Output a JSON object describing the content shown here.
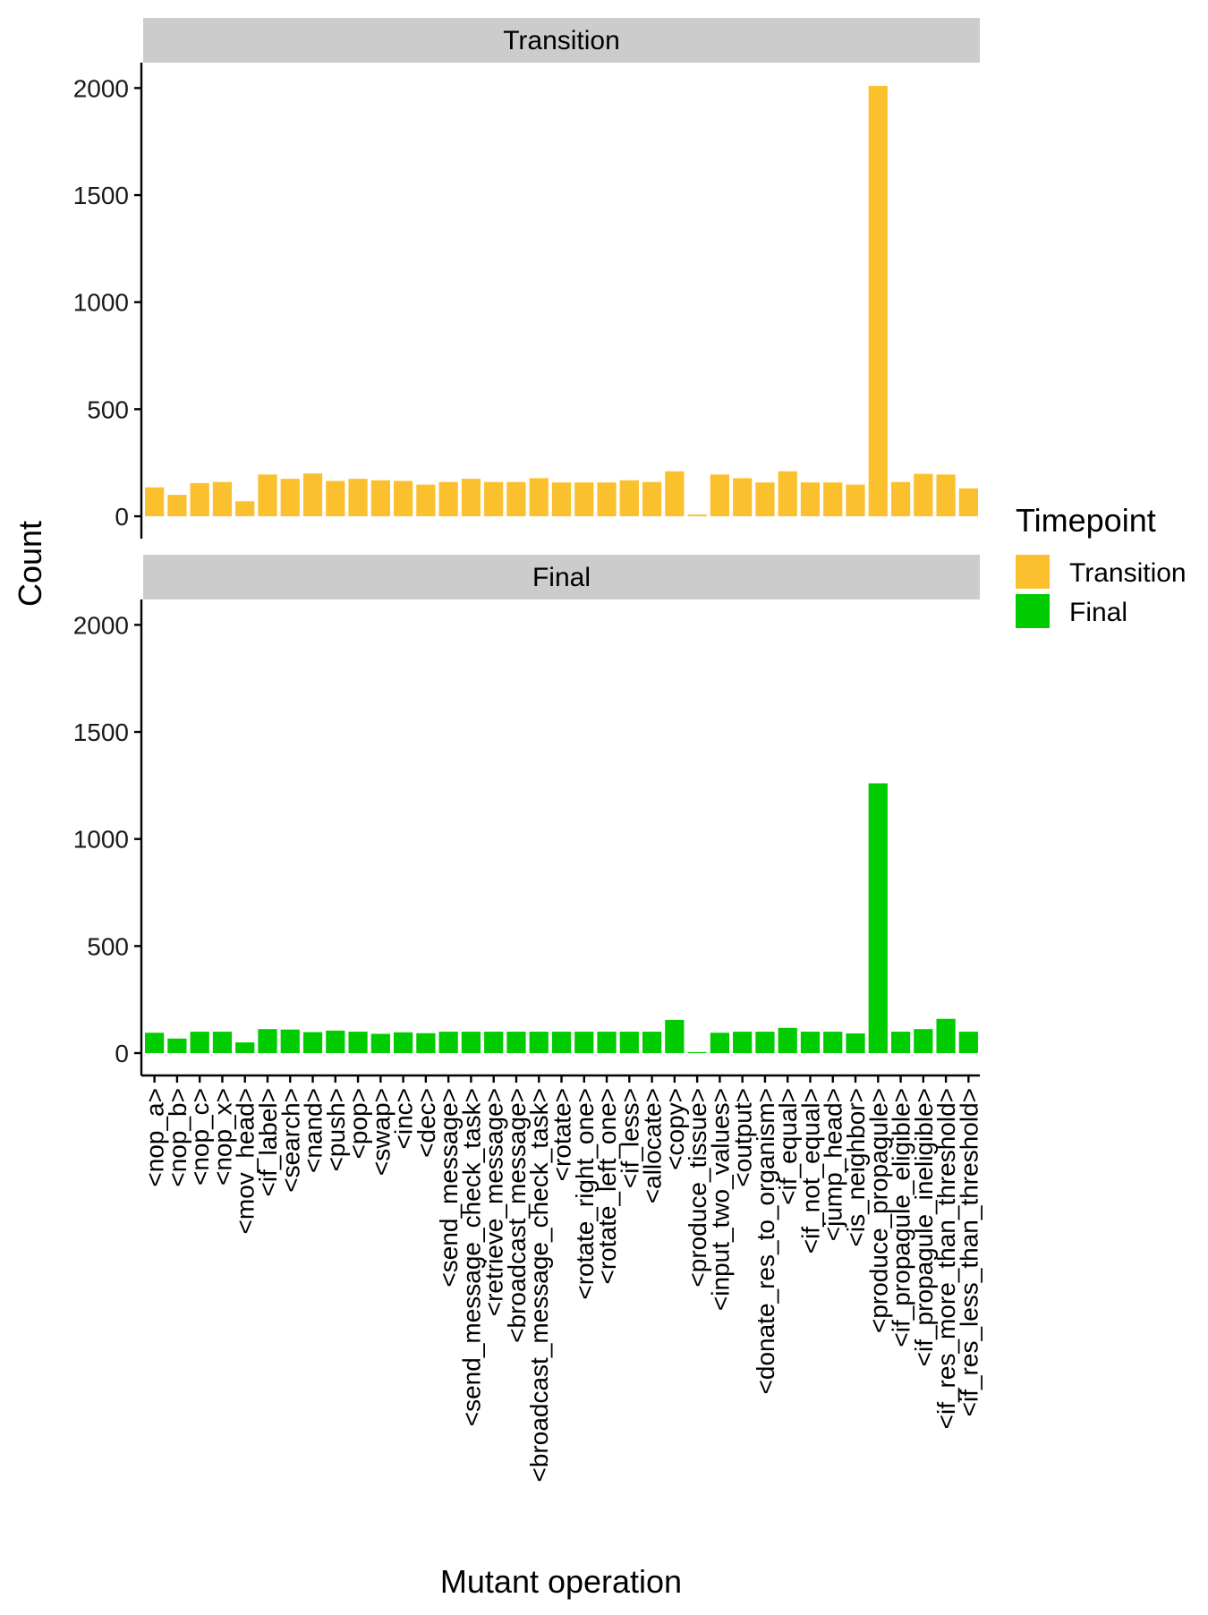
{
  "chart_data": {
    "type": "bar",
    "xlabel": "Mutant operation",
    "ylabel": "Count",
    "ylim": [
      0,
      2100
    ],
    "yticks": [
      0,
      500,
      1000,
      1500,
      2000
    ],
    "ytick_labels": [
      "0",
      "500",
      "1000",
      "1500",
      "2000"
    ],
    "grid": false,
    "legend": {
      "title": "Timepoint",
      "placement": "right",
      "entries": [
        {
          "label": "Transition",
          "color": "#FBC02D"
        },
        {
          "label": "Final",
          "color": "#00CC00"
        }
      ]
    },
    "categories": [
      "<nop_a>",
      "<nop_b>",
      "<nop_c>",
      "<nop_x>",
      "<mov_head>",
      "<if_label>",
      "<search>",
      "<nand>",
      "<push>",
      "<pop>",
      "<swap>",
      "<inc>",
      "<dec>",
      "<send_message>",
      "<send_message_check_task>",
      "<retrieve_message>",
      "<broadcast_message>",
      "<broadcast_message_check_task>",
      "<rotate>",
      "<rotate_right_one>",
      "<rotate_left_one>",
      "<if_less>",
      "<allocate>",
      "<copy>",
      "<produce_tissue>",
      "<input_two_values>",
      "<output>",
      "<donate_res_to_organism>",
      "<if_equal>",
      "<if_not_equal>",
      "<jump_head>",
      "<is_neighbor>",
      "<produce_propagule>",
      "<if_propagule_eligible>",
      "<if_propagule_ineligible>",
      "<if_res_more_than_threshold>",
      "<if_res_less_than_threshold>"
    ],
    "series": [
      {
        "name": "Transition",
        "color": "#FBC02D",
        "values": [
          135,
          100,
          155,
          160,
          70,
          195,
          175,
          200,
          165,
          175,
          168,
          165,
          148,
          160,
          175,
          160,
          160,
          178,
          158,
          158,
          158,
          168,
          160,
          210,
          8,
          195,
          178,
          158,
          210,
          158,
          158,
          148,
          2010,
          160,
          198,
          195,
          130
        ]
      },
      {
        "name": "Final",
        "color": "#00CC00",
        "values": [
          95,
          68,
          100,
          100,
          50,
          112,
          110,
          98,
          105,
          100,
          90,
          97,
          93,
          100,
          100,
          100,
          100,
          100,
          100,
          100,
          100,
          100,
          100,
          155,
          5,
          95,
          100,
          100,
          118,
          100,
          100,
          92,
          1260,
          100,
          112,
          160,
          100
        ]
      }
    ]
  }
}
